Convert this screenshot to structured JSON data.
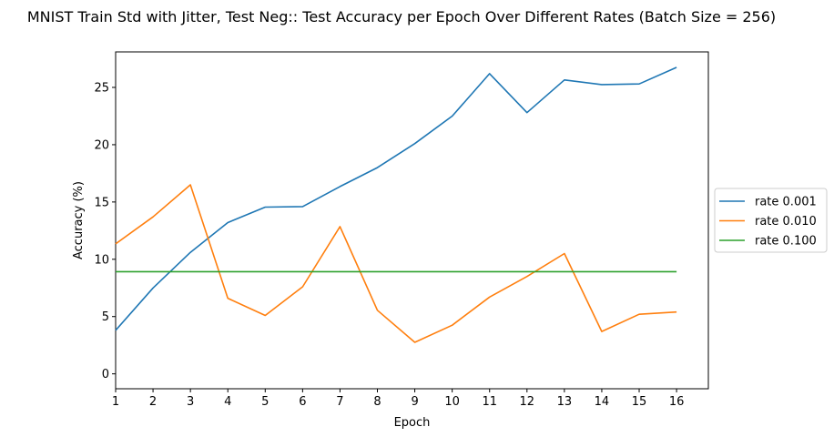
{
  "chart_data": {
    "type": "line",
    "title": "MNIST Train Std with Jitter, Test Neg:: Test Accuracy per Epoch Over Different Rates (Batch Size = 256)",
    "xlabel": "Epoch",
    "ylabel": "Accuracy (%)",
    "x": [
      1,
      2,
      3,
      4,
      5,
      6,
      7,
      8,
      9,
      10,
      11,
      12,
      13,
      14,
      15,
      16
    ],
    "xlim": [
      1,
      16.85
    ],
    "ylim": [
      -1.3,
      28.1
    ],
    "xticks": [
      1,
      2,
      3,
      4,
      5,
      6,
      7,
      8,
      9,
      10,
      11,
      12,
      13,
      14,
      15,
      16
    ],
    "yticks": [
      0,
      5,
      10,
      15,
      20,
      25
    ],
    "grid": false,
    "legend_position": "center-right outside",
    "series": [
      {
        "name": "rate 0.001",
        "color": "#1f77b4",
        "values": [
          3.8,
          7.5,
          10.6,
          13.2,
          14.55,
          14.6,
          16.35,
          18.0,
          20.1,
          22.5,
          26.2,
          22.8,
          25.65,
          25.25,
          25.3,
          26.75
        ]
      },
      {
        "name": "rate 0.010",
        "color": "#ff7f0e",
        "values": [
          11.35,
          13.7,
          16.5,
          6.6,
          5.1,
          7.6,
          12.85,
          5.55,
          2.75,
          4.25,
          6.7,
          8.5,
          10.5,
          3.7,
          5.2,
          5.4
        ]
      },
      {
        "name": "rate 0.100",
        "color": "#2ca02c",
        "values": [
          8.92,
          8.92,
          8.92,
          8.92,
          8.92,
          8.92,
          8.92,
          8.92,
          8.92,
          8.92,
          8.92,
          8.92,
          8.92,
          8.92,
          8.92,
          8.92
        ]
      }
    ]
  }
}
